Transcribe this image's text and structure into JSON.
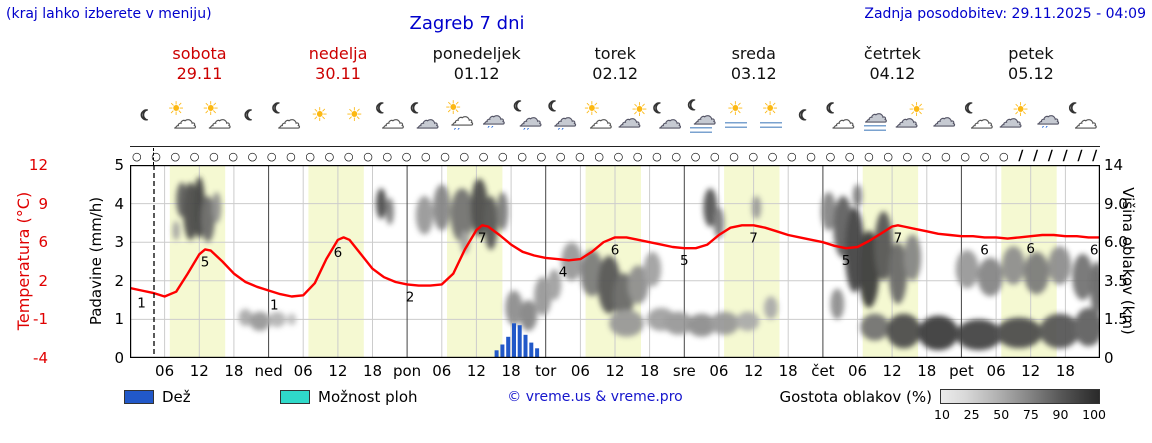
{
  "header": {
    "menu_note": "(kraj lahko izberete v meniju)",
    "title": "Zagreb 7 dni",
    "last_update": "Zadnja posodobitev: 29.11.2025 - 04:09"
  },
  "days": [
    {
      "name": "sobota",
      "date": "29.11",
      "weekend": true
    },
    {
      "name": "nedelja",
      "date": "30.11",
      "weekend": true
    },
    {
      "name": "ponedeljek",
      "date": "01.12",
      "weekend": false
    },
    {
      "name": "torek",
      "date": "02.12",
      "weekend": false
    },
    {
      "name": "sreda",
      "date": "03.12",
      "weekend": false
    },
    {
      "name": "četrtek",
      "date": "04.12",
      "weekend": false
    },
    {
      "name": "petek",
      "date": "05.12",
      "weekend": false
    }
  ],
  "axes": {
    "temp_label": "Temperatura (°C)",
    "temp_ticks": [
      "12",
      "9",
      "6",
      "2",
      "-1",
      "-4"
    ],
    "precip_label": "Padavine (mm/h)",
    "precip_ticks": [
      "5",
      "4",
      "3",
      "2",
      "1",
      "0"
    ],
    "cloud_label": "Višina oblakov (km)",
    "cloud_ticks": [
      "14",
      "9.0",
      "6.0",
      "3.5",
      "1.5",
      "0"
    ],
    "x_ticks": [
      "06",
      "12",
      "18",
      "ned",
      "06",
      "12",
      "18",
      "pon",
      "06",
      "12",
      "18",
      "tor",
      "06",
      "12",
      "18",
      "sre",
      "06",
      "12",
      "18",
      "čet",
      "06",
      "12",
      "18",
      "pet",
      "06",
      "12",
      "18"
    ]
  },
  "icons": [
    "moon",
    "sun-cloud",
    "sun-cloud",
    "moon",
    "moon-cloud",
    "sun",
    "sun",
    "moon-cloud",
    "moon-cloud-gray",
    "sun-cloud-drizzle",
    "cloud-drizzle",
    "night-drizzle",
    "night-drizzle",
    "sun-cloud",
    "cloud-sun",
    "moon-cloud-gray",
    "fog-night",
    "fog-sun",
    "fog-sun",
    "moon",
    "moon-cloud",
    "fog-cloud",
    "cloud-sun",
    "cloud",
    "moon-cloud",
    "cloud-sun",
    "cloud-drizzle",
    "moon-cloud"
  ],
  "markers": {
    "circle_symbol": "○",
    "circle_count": 46,
    "wind_symbol": "∕",
    "wind_count": 6
  },
  "legend": {
    "rain": "Dež",
    "showers": "Možnost ploh",
    "copyright": "© vreme.us & vreme.pro",
    "cloud_density": "Gostota oblakov (%)",
    "density_ticks": [
      "10",
      "25",
      "50",
      "75",
      "90",
      "100"
    ]
  },
  "colors": {
    "header_text": "#0000cc",
    "weekend": "#cc0000",
    "temp_axis": "#e00000",
    "temp_line": "#ff0000",
    "rain_bar": "#2158c8",
    "showers": "#2fd9c9",
    "day_band": "#f5f9d2"
  },
  "chart_data": {
    "type": "meteogram",
    "x_unit": "hours_from_sat_00",
    "x_range": [
      0,
      168
    ],
    "temp_axis_range": [
      -4,
      12
    ],
    "precip_axis_range": [
      0,
      5
    ],
    "cloud_height_km_ticks": [
      0,
      1.5,
      3.5,
      6.0,
      9.0,
      14
    ],
    "now_hour": 4.15,
    "daylight_bands": [
      [
        6.9,
        16.5
      ],
      [
        30.9,
        40.5
      ],
      [
        54.9,
        64.5
      ],
      [
        78.9,
        88.5
      ],
      [
        102.9,
        112.5
      ],
      [
        126.9,
        136.5
      ],
      [
        150.9,
        160.5
      ]
    ],
    "temperature": [
      [
        0,
        1.8
      ],
      [
        2,
        1.6
      ],
      [
        4,
        1.4
      ],
      [
        6,
        1.1
      ],
      [
        8,
        1.5
      ],
      [
        10,
        3.0
      ],
      [
        12,
        4.6
      ],
      [
        13,
        5.0
      ],
      [
        14,
        4.9
      ],
      [
        16,
        4.0
      ],
      [
        18,
        3.0
      ],
      [
        20,
        2.3
      ],
      [
        22,
        1.9
      ],
      [
        24,
        1.6
      ],
      [
        26,
        1.3
      ],
      [
        28,
        1.1
      ],
      [
        30,
        1.2
      ],
      [
        32,
        2.2
      ],
      [
        34,
        4.2
      ],
      [
        36,
        5.8
      ],
      [
        37,
        6.0
      ],
      [
        38,
        5.8
      ],
      [
        40,
        4.6
      ],
      [
        42,
        3.4
      ],
      [
        44,
        2.7
      ],
      [
        46,
        2.3
      ],
      [
        48,
        2.1
      ],
      [
        50,
        2.0
      ],
      [
        52,
        2.0
      ],
      [
        54,
        2.1
      ],
      [
        56,
        3.0
      ],
      [
        58,
        5.0
      ],
      [
        60,
        6.6
      ],
      [
        61,
        7.0
      ],
      [
        62,
        6.9
      ],
      [
        64,
        6.2
      ],
      [
        66,
        5.4
      ],
      [
        68,
        4.8
      ],
      [
        70,
        4.5
      ],
      [
        72,
        4.3
      ],
      [
        74,
        4.2
      ],
      [
        76,
        4.1
      ],
      [
        78,
        4.2
      ],
      [
        80,
        4.8
      ],
      [
        82,
        5.6
      ],
      [
        84,
        6.0
      ],
      [
        86,
        6.0
      ],
      [
        88,
        5.8
      ],
      [
        90,
        5.6
      ],
      [
        92,
        5.4
      ],
      [
        94,
        5.2
      ],
      [
        96,
        5.1
      ],
      [
        98,
        5.1
      ],
      [
        100,
        5.4
      ],
      [
        102,
        6.2
      ],
      [
        104,
        6.8
      ],
      [
        106,
        7.0
      ],
      [
        108,
        7.0
      ],
      [
        110,
        6.8
      ],
      [
        112,
        6.5
      ],
      [
        114,
        6.2
      ],
      [
        116,
        6.0
      ],
      [
        118,
        5.8
      ],
      [
        120,
        5.6
      ],
      [
        122,
        5.3
      ],
      [
        124,
        5.1
      ],
      [
        126,
        5.2
      ],
      [
        128,
        5.7
      ],
      [
        130,
        6.3
      ],
      [
        132,
        6.9
      ],
      [
        133,
        7.0
      ],
      [
        134,
        6.9
      ],
      [
        136,
        6.7
      ],
      [
        138,
        6.5
      ],
      [
        140,
        6.3
      ],
      [
        142,
        6.2
      ],
      [
        144,
        6.1
      ],
      [
        146,
        6.1
      ],
      [
        148,
        6.0
      ],
      [
        150,
        6.0
      ],
      [
        152,
        5.9
      ],
      [
        154,
        6.0
      ],
      [
        156,
        6.1
      ],
      [
        158,
        6.2
      ],
      [
        160,
        6.2
      ],
      [
        162,
        6.1
      ],
      [
        164,
        6.1
      ],
      [
        166,
        6.0
      ],
      [
        168,
        6.0
      ]
    ],
    "temperature_labels": [
      [
        2,
        "1"
      ],
      [
        13,
        "5"
      ],
      [
        25,
        "1"
      ],
      [
        36,
        "6"
      ],
      [
        48.5,
        "2"
      ],
      [
        61,
        "7"
      ],
      [
        75,
        "4"
      ],
      [
        84,
        "6"
      ],
      [
        96,
        "5"
      ],
      [
        108,
        "7"
      ],
      [
        124,
        "5"
      ],
      [
        133,
        "7"
      ],
      [
        148,
        "6"
      ],
      [
        156,
        "6"
      ],
      [
        167,
        "6"
      ]
    ],
    "precip_bars": [
      [
        63.5,
        0.2
      ],
      [
        64.5,
        0.35
      ],
      [
        65.5,
        0.55
      ],
      [
        66.5,
        0.9
      ],
      [
        67.5,
        0.85
      ],
      [
        68.5,
        0.6
      ],
      [
        69.5,
        0.4
      ],
      [
        70.5,
        0.25
      ]
    ],
    "clouds_format": "[hour, level_0to5, rx_hours, ry_levels, density_percent]",
    "clouds": [
      [
        9,
        4.1,
        1.0,
        0.45,
        75
      ],
      [
        10.5,
        3.8,
        1.3,
        0.75,
        85
      ],
      [
        12,
        3.9,
        1.0,
        0.8,
        90
      ],
      [
        13.5,
        3.6,
        1.2,
        0.6,
        70
      ],
      [
        15,
        3.9,
        0.8,
        0.4,
        50
      ],
      [
        8,
        3.3,
        0.6,
        0.25,
        40
      ],
      [
        20,
        1.05,
        1.2,
        0.22,
        35
      ],
      [
        22.5,
        0.95,
        1.8,
        0.25,
        45
      ],
      [
        25.5,
        1.0,
        1.5,
        0.2,
        30
      ],
      [
        28,
        1.0,
        0.8,
        0.15,
        25
      ],
      [
        43.5,
        4.0,
        0.9,
        0.4,
        85
      ],
      [
        45,
        3.8,
        0.7,
        0.35,
        60
      ],
      [
        51,
        3.7,
        1.5,
        0.5,
        45
      ],
      [
        54,
        3.9,
        1.5,
        0.6,
        55
      ],
      [
        57.5,
        3.7,
        2.0,
        0.7,
        65
      ],
      [
        60.5,
        3.9,
        1.5,
        0.75,
        85
      ],
      [
        62.5,
        3.5,
        1.2,
        0.7,
        80
      ],
      [
        64.5,
        3.8,
        1.0,
        0.5,
        60
      ],
      [
        58,
        3.0,
        0.8,
        0.3,
        40
      ],
      [
        66.5,
        1.3,
        1.5,
        0.45,
        50
      ],
      [
        69,
        1.1,
        1.5,
        0.4,
        55
      ],
      [
        71.5,
        1.6,
        1.5,
        0.5,
        45
      ],
      [
        73.5,
        1.9,
        1.2,
        0.4,
        40
      ],
      [
        76.5,
        2.5,
        1.8,
        0.5,
        45
      ],
      [
        80,
        2.2,
        2.0,
        0.6,
        60
      ],
      [
        83,
        1.9,
        2.0,
        0.75,
        80
      ],
      [
        85.5,
        1.6,
        1.8,
        0.6,
        70
      ],
      [
        88,
        1.9,
        1.8,
        0.5,
        50
      ],
      [
        90.5,
        2.3,
        1.5,
        0.45,
        40
      ],
      [
        86,
        0.9,
        3.0,
        0.35,
        45
      ],
      [
        92,
        1.0,
        2.5,
        0.3,
        40
      ],
      [
        95,
        0.9,
        2.5,
        0.3,
        45
      ],
      [
        99,
        0.85,
        2.5,
        0.3,
        50
      ],
      [
        103,
        0.9,
        2.5,
        0.3,
        45
      ],
      [
        107,
        0.95,
        2.0,
        0.25,
        35
      ],
      [
        100.5,
        3.9,
        1.2,
        0.5,
        80
      ],
      [
        102,
        3.5,
        0.9,
        0.4,
        60
      ],
      [
        108.5,
        3.9,
        0.8,
        0.3,
        45
      ],
      [
        111,
        1.3,
        1.2,
        0.3,
        35
      ],
      [
        121,
        3.8,
        1.3,
        0.5,
        55
      ],
      [
        123.5,
        3.4,
        1.7,
        0.8,
        75
      ],
      [
        125.5,
        2.8,
        1.7,
        1.1,
        90
      ],
      [
        128,
        2.3,
        1.8,
        1.0,
        95
      ],
      [
        130.5,
        2.9,
        1.6,
        0.9,
        80
      ],
      [
        133,
        2.2,
        1.6,
        0.8,
        70
      ],
      [
        135.5,
        2.6,
        1.5,
        0.6,
        55
      ],
      [
        122.5,
        1.4,
        1.2,
        0.4,
        50
      ],
      [
        126,
        4.2,
        0.8,
        0.3,
        60
      ],
      [
        129,
        0.8,
        2.5,
        0.35,
        65
      ],
      [
        134,
        0.7,
        3.0,
        0.45,
        85
      ],
      [
        140,
        0.65,
        3.5,
        0.45,
        95
      ],
      [
        147,
        0.6,
        4.0,
        0.4,
        90
      ],
      [
        154,
        0.65,
        4.0,
        0.4,
        85
      ],
      [
        161,
        0.7,
        3.5,
        0.45,
        80
      ],
      [
        166,
        0.8,
        2.5,
        0.5,
        75
      ],
      [
        145,
        2.3,
        2.0,
        0.5,
        45
      ],
      [
        149,
        2.1,
        2.2,
        0.5,
        55
      ],
      [
        153,
        2.4,
        2.0,
        0.5,
        50
      ],
      [
        157,
        2.2,
        2.2,
        0.55,
        60
      ],
      [
        161,
        2.4,
        2.0,
        0.5,
        50
      ],
      [
        165,
        2.1,
        1.8,
        0.6,
        65
      ],
      [
        167.5,
        1.8,
        1.2,
        0.7,
        70
      ]
    ]
  }
}
